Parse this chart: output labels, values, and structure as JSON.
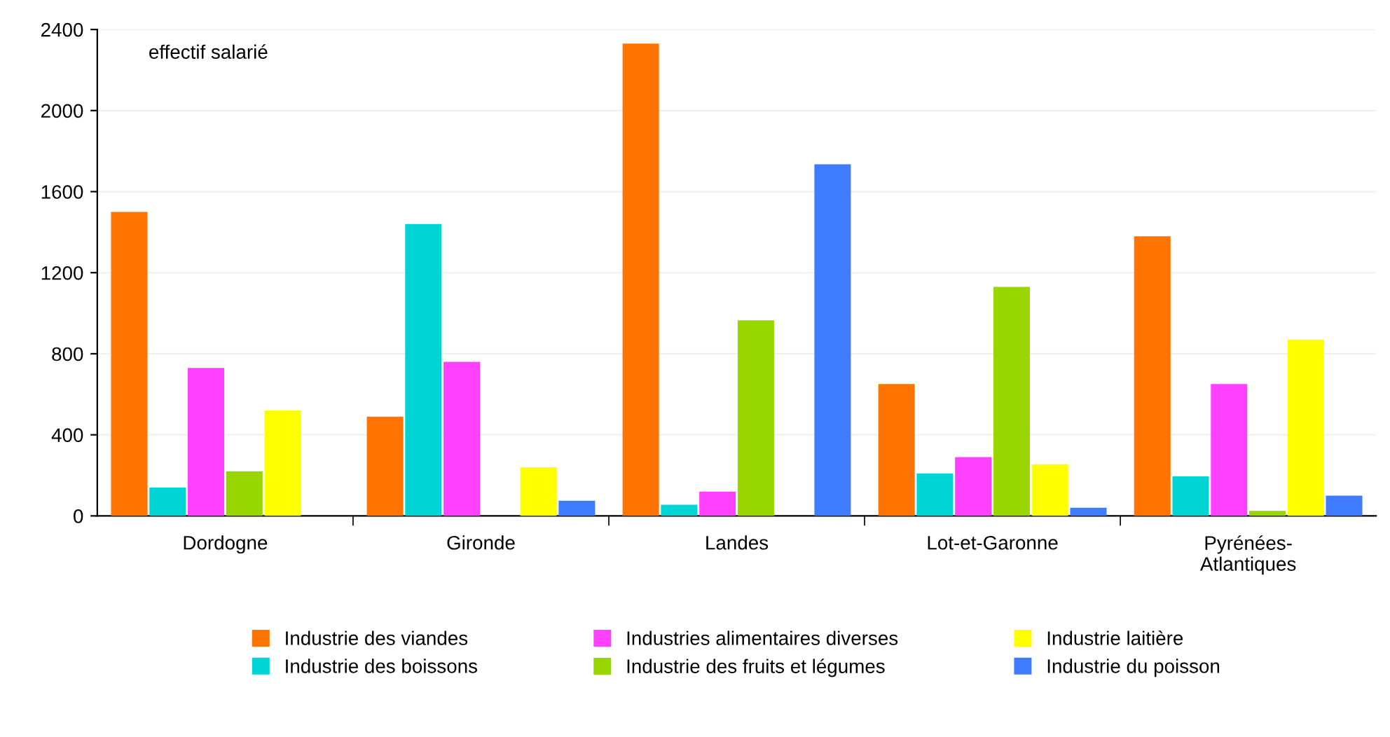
{
  "chart_data": {
    "type": "bar",
    "ylabel": "effectif salarié",
    "categories": [
      "Dordogne",
      "Gironde",
      "Landes",
      "Lot-et-Garonne",
      "Pyrénées-\nAtlantiques"
    ],
    "series": [
      {
        "name": "Industrie des viandes",
        "color": "#ff7300",
        "values": [
          1500,
          490,
          2330,
          650,
          1380
        ]
      },
      {
        "name": "Industrie des boissons",
        "color": "#00d4d4",
        "values": [
          140,
          1440,
          55,
          210,
          195
        ]
      },
      {
        "name": "Industries alimentaires diverses",
        "color": "#ff40ff",
        "values": [
          730,
          760,
          120,
          290,
          650
        ]
      },
      {
        "name": "Industrie des fruits et légumes",
        "color": "#99d600",
        "values": [
          220,
          null,
          965,
          1130,
          25
        ]
      },
      {
        "name": "Industrie laitière",
        "color": "#ffff00",
        "values": [
          520,
          240,
          null,
          255,
          870
        ]
      },
      {
        "name": "Industrie du poisson",
        "color": "#3f7bff",
        "values": [
          null,
          75,
          1735,
          40,
          100
        ]
      }
    ],
    "ylim": [
      0,
      2400
    ],
    "yticks": [
      0,
      400,
      800,
      1200,
      1600,
      2000,
      2400
    ],
    "grid": "y",
    "legend": "bottom"
  }
}
